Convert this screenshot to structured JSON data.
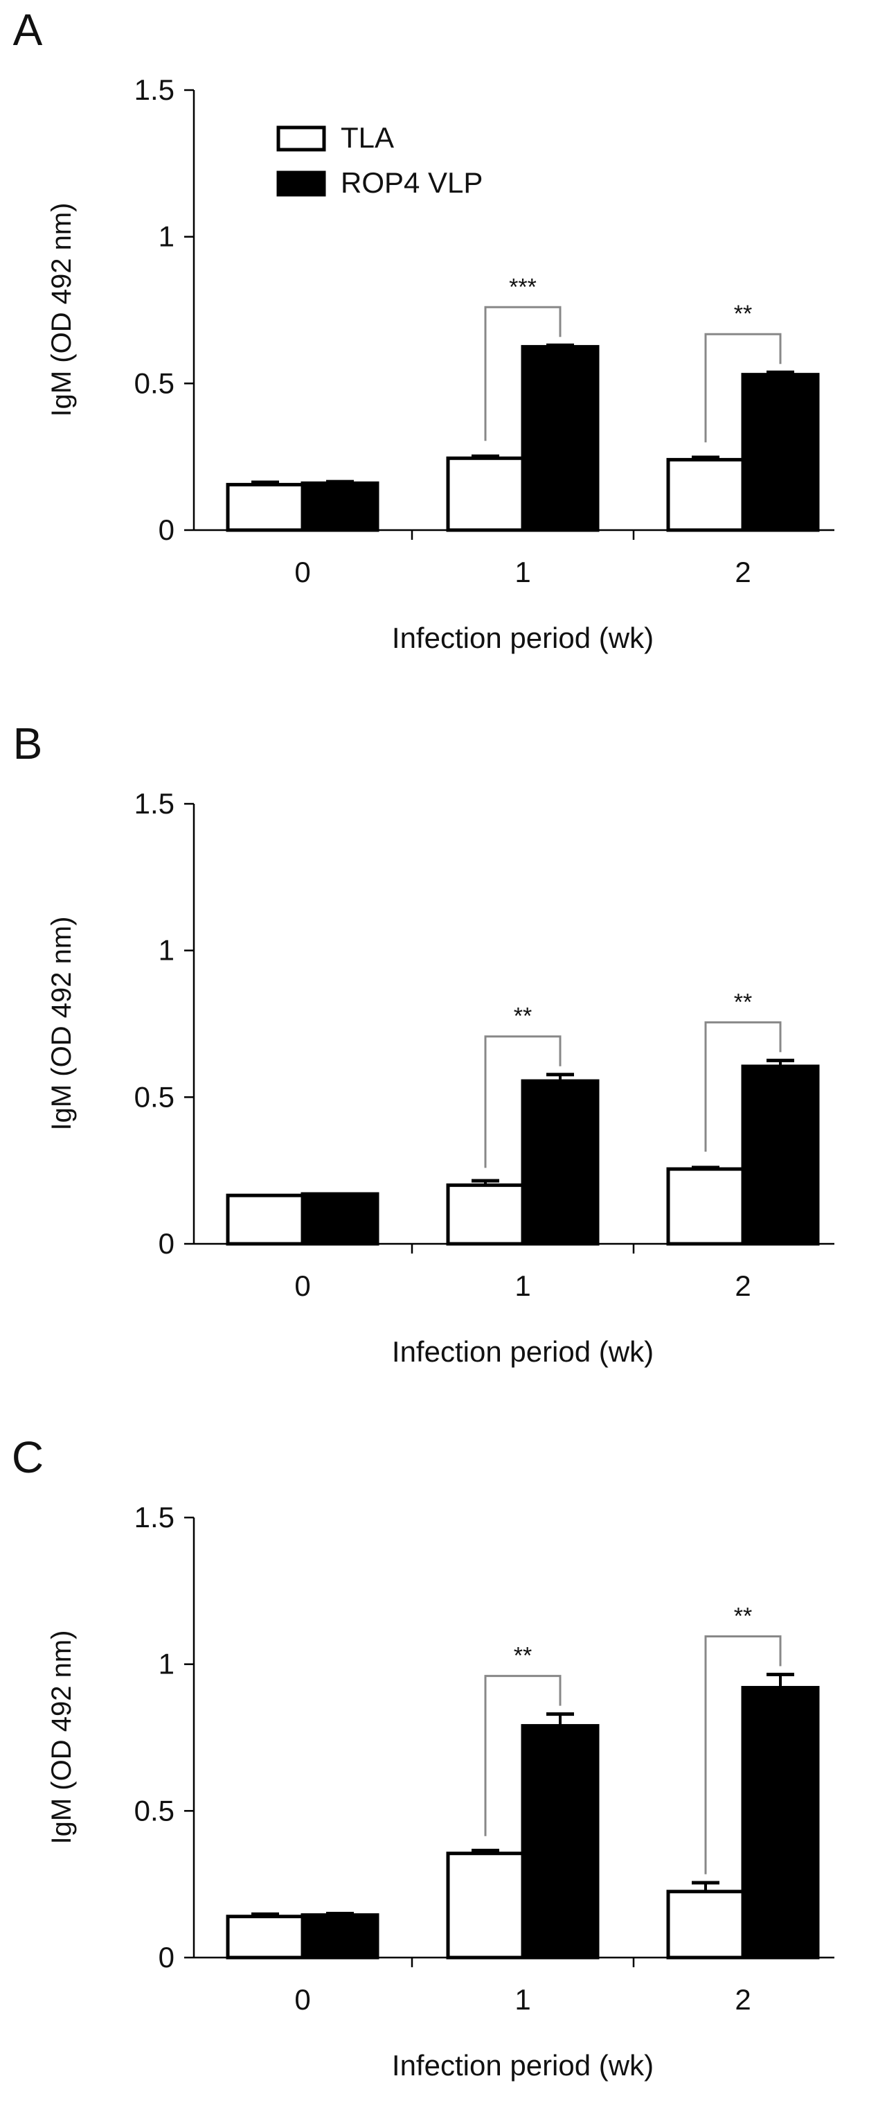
{
  "chart_data": [
    {
      "panel": "A",
      "type": "bar",
      "categories": [
        "0",
        "1",
        "2"
      ],
      "xlabel": "Infection period (wk)",
      "ylabel": "IgM (OD 492 nm)",
      "ylim": [
        0,
        1.5
      ],
      "yticks": [
        "0",
        "0.5",
        "1",
        "1.5"
      ],
      "legend": [
        {
          "name": "TLA"
        },
        {
          "name": "ROP4 VLP"
        }
      ],
      "legend_position": "top-left",
      "series": [
        {
          "name": "TLA",
          "values": [
            0.155,
            0.245,
            0.24
          ],
          "errors": [
            0.008,
            0.007,
            0.008
          ]
        },
        {
          "name": "ROP4 VLP",
          "values": [
            0.16,
            0.625,
            0.53
          ],
          "errors": [
            0.005,
            0.005,
            0.008
          ]
        }
      ],
      "annotations": [
        {
          "category": "1",
          "label": "***"
        },
        {
          "category": "2",
          "label": "**"
        }
      ]
    },
    {
      "panel": "B",
      "type": "bar",
      "categories": [
        "0",
        "1",
        "2"
      ],
      "xlabel": "Infection period (wk)",
      "ylabel": "IgM (OD 492 nm)",
      "ylim": [
        0,
        1.5
      ],
      "yticks": [
        "0",
        "0.5",
        "1",
        "1.5"
      ],
      "series": [
        {
          "name": "TLA",
          "values": [
            0.165,
            0.2,
            0.255
          ],
          "errors": [
            0.0,
            0.015,
            0.005
          ]
        },
        {
          "name": "ROP4 VLP",
          "values": [
            0.17,
            0.555,
            0.605
          ],
          "errors": [
            0.0,
            0.022,
            0.02
          ]
        }
      ],
      "annotations": [
        {
          "category": "1",
          "label": "**"
        },
        {
          "category": "2",
          "label": "**"
        }
      ]
    },
    {
      "panel": "C",
      "type": "bar",
      "categories": [
        "0",
        "1",
        "2"
      ],
      "xlabel": "Infection period (wk)",
      "ylabel": "IgM (OD 492 nm)",
      "ylim": [
        0,
        1.5
      ],
      "yticks": [
        "0",
        "0.5",
        "1",
        "1.5"
      ],
      "series": [
        {
          "name": "TLA",
          "values": [
            0.14,
            0.355,
            0.225
          ],
          "errors": [
            0.008,
            0.01,
            0.03
          ]
        },
        {
          "name": "ROP4 VLP",
          "values": [
            0.145,
            0.79,
            0.92
          ],
          "errors": [
            0.005,
            0.04,
            0.045
          ]
        }
      ],
      "annotations": [
        {
          "category": "1",
          "label": "**"
        },
        {
          "category": "2",
          "label": "**"
        }
      ]
    }
  ],
  "colors": {
    "tla_fill": "#ffffff",
    "vlp_fill": "#000000",
    "stroke": "#000000",
    "bracket": "#888888"
  }
}
